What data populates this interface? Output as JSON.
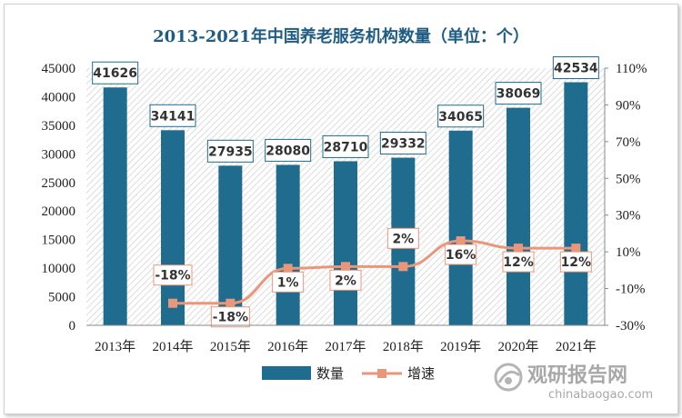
{
  "chart_data": {
    "type": "bar",
    "title": "2013-2021年中国养老服务机构数量（单位：个）",
    "categories": [
      "2013年",
      "2014年",
      "2015年",
      "2016年",
      "2017年",
      "2018年",
      "2019年",
      "2020年",
      "2021年"
    ],
    "series": [
      {
        "name": "数量",
        "type": "bar",
        "axis": "left",
        "color": "#1f6c8f",
        "values": [
          41626,
          34141,
          27935,
          28080,
          28710,
          29332,
          34065,
          38069,
          42534
        ],
        "labels": [
          "41626",
          "34141",
          "27935",
          "28080",
          "28710",
          "29332",
          "34065",
          "38069",
          "42534"
        ]
      },
      {
        "name": "增速",
        "type": "line",
        "axis": "right",
        "color": "#e8977a",
        "values": [
          null,
          -18,
          -18,
          1,
          2,
          2,
          16,
          12,
          12
        ],
        "labels": [
          "",
          "-18%",
          "-18%",
          "1%",
          "2%",
          "2%",
          "16%",
          "12%",
          "12%"
        ]
      }
    ],
    "y_left": {
      "min": 0,
      "max": 45000,
      "ticks": [
        "0",
        "5000",
        "10000",
        "15000",
        "20000",
        "25000",
        "30000",
        "35000",
        "40000",
        "45000"
      ]
    },
    "y_right": {
      "min": -30,
      "max": 110,
      "ticks": [
        "-30%",
        "-10%",
        "10%",
        "30%",
        "50%",
        "70%",
        "90%",
        "110%"
      ]
    },
    "legend": {
      "position": "bottom"
    },
    "grid": false
  },
  "watermark": {
    "cn": "观研报告网",
    "en": "chinabaogao.com"
  }
}
